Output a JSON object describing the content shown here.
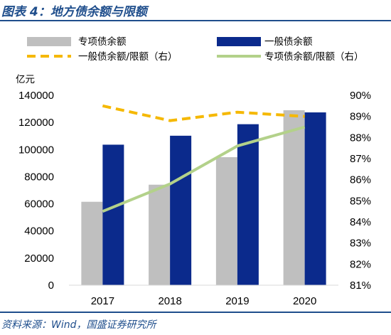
{
  "header": {
    "title": "图表 4：地方债余额与限额"
  },
  "footer": {
    "source": "资料来源：Wind，国盛证券研究所"
  },
  "colors": {
    "special_bond_bar": "#bfbfbf",
    "general_bond_bar": "#0b2a8c",
    "general_ratio_line": "#f5b800",
    "special_ratio_line": "#b3d18a",
    "title_color": "#1f4e8c"
  },
  "chart_data": {
    "type": "bar",
    "categories": [
      "2017",
      "2018",
      "2019",
      "2020"
    ],
    "y_unit_label": "亿元",
    "ylim": [
      0,
      140000
    ],
    "y_ticks": [
      "0",
      "20000",
      "40000",
      "60000",
      "80000",
      "100000",
      "120000",
      "140000"
    ],
    "y2lim": [
      0.81,
      0.9
    ],
    "y2_ticks": [
      "81%",
      "82%",
      "83%",
      "84%",
      "85%",
      "86%",
      "87%",
      "88%",
      "89%",
      "90%"
    ],
    "series": [
      {
        "name": "专项债余额",
        "kind": "bar",
        "axis": "left",
        "color": "#bfbfbf",
        "values": [
          61500,
          74100,
          94400,
          129000
        ]
      },
      {
        "name": "一般债余额",
        "kind": "bar",
        "axis": "left",
        "color": "#0b2a8c",
        "values": [
          103600,
          110200,
          118700,
          127400
        ]
      },
      {
        "name": "一般债余额/限额（右）",
        "kind": "line",
        "style": "dashed",
        "axis": "right",
        "color": "#f5b800",
        "values": [
          0.895,
          0.888,
          0.892,
          0.89
        ]
      },
      {
        "name": "专项债余额/限额（右）",
        "kind": "line",
        "style": "solid",
        "axis": "right",
        "color": "#b3d18a",
        "values": [
          0.845,
          0.858,
          0.876,
          0.885
        ]
      }
    ],
    "legend_position": "top",
    "grid": false
  }
}
